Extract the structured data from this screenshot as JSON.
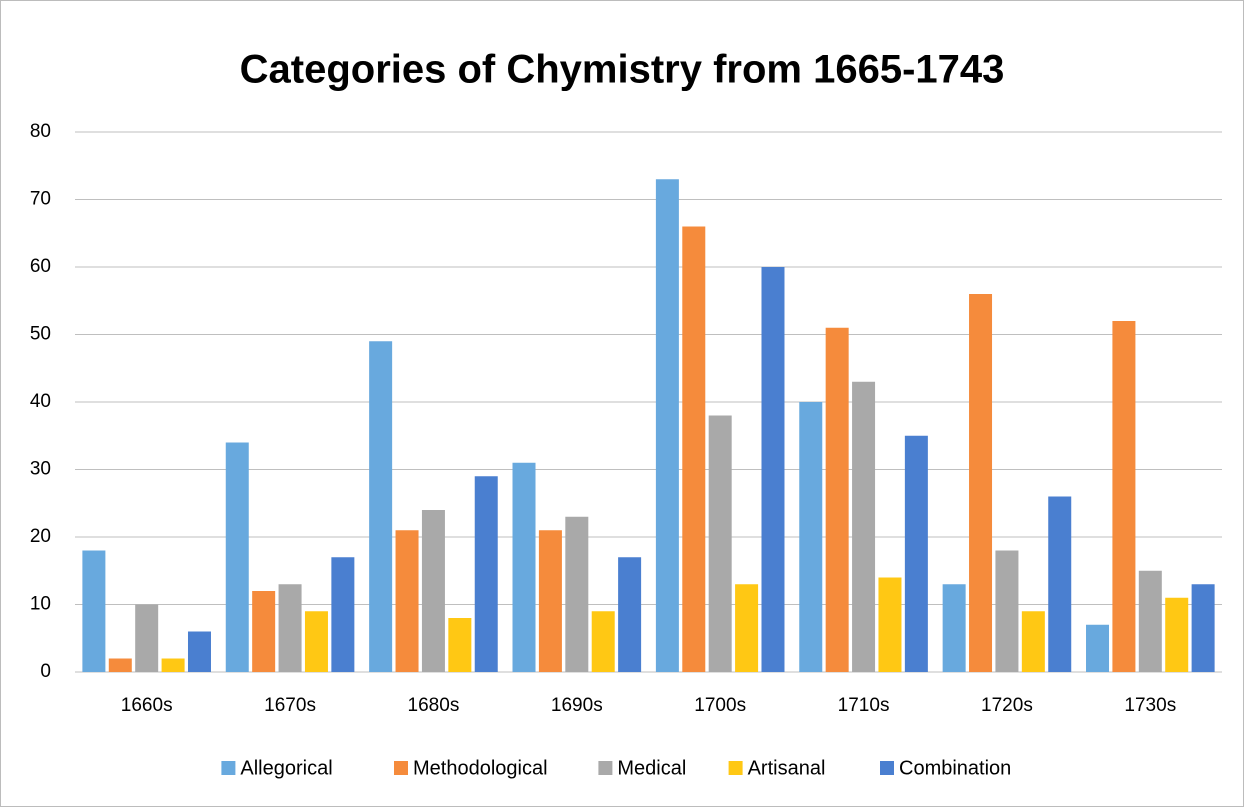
{
  "chart_data": {
    "type": "bar",
    "title": "Categories of Chymistry from 1665-1743",
    "categories": [
      "1660s",
      "1670s",
      "1680s",
      "1690s",
      "1700s",
      "1710s",
      "1720s",
      "1730s"
    ],
    "series": [
      {
        "name": "Allegorical",
        "color": "#68a9de",
        "values": [
          18,
          34,
          49,
          31,
          73,
          40,
          13,
          7
        ]
      },
      {
        "name": "Methodological",
        "color": "#f58b3c",
        "values": [
          2,
          12,
          21,
          21,
          66,
          51,
          56,
          52
        ]
      },
      {
        "name": "Medical",
        "color": "#a9a9a9",
        "values": [
          10,
          13,
          24,
          23,
          38,
          43,
          18,
          15
        ]
      },
      {
        "name": "Artisanal",
        "color": "#ffc814",
        "values": [
          2,
          9,
          8,
          9,
          13,
          14,
          9,
          11
        ]
      },
      {
        "name": "Combination",
        "color": "#4a7fd0",
        "values": [
          6,
          17,
          29,
          17,
          60,
          35,
          26,
          13
        ]
      }
    ],
    "ylim": [
      0,
      80
    ],
    "yticks": [
      0,
      10,
      20,
      30,
      40,
      50,
      60,
      70,
      80
    ],
    "grid": true,
    "legend": "bottom"
  }
}
